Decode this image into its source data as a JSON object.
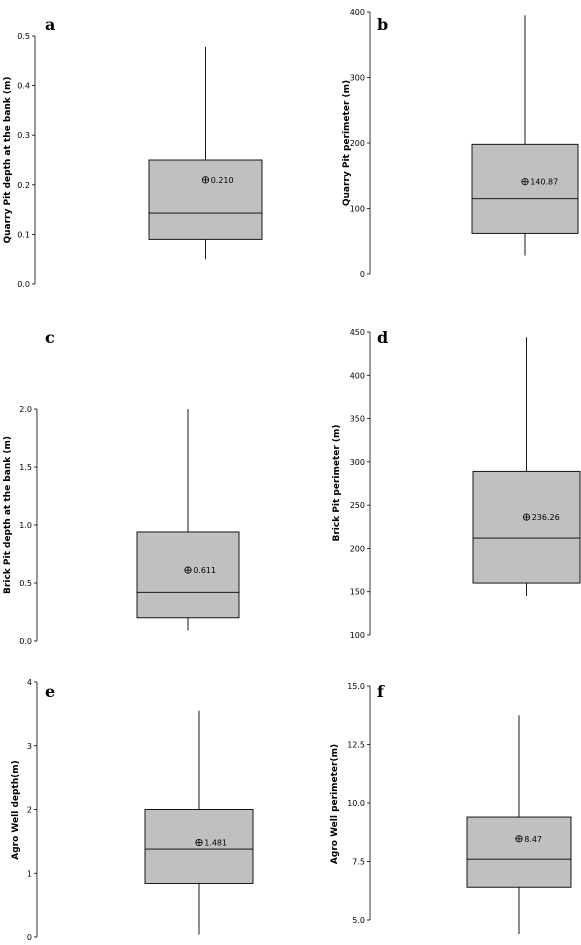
{
  "chart_data": [
    {
      "type": "box",
      "panel": "a",
      "ylabel": "Quarry Pit depth at the bank (m)",
      "ylim": [
        0,
        0.5
      ],
      "yticks": [
        "0.0",
        "0.1",
        "0.2",
        "0.3",
        "0.4",
        "0.5"
      ],
      "yticks_values": [
        0,
        0.1,
        0.2,
        0.3,
        0.4,
        0.5
      ],
      "whisker_low": 0.05,
      "q1": 0.09,
      "median": 0.143,
      "q3": 0.25,
      "whisker_high": 0.478,
      "mean": 0.21,
      "mean_label": "0.210"
    },
    {
      "type": "box",
      "panel": "b",
      "ylabel": "Quarry Pit perimeter (m)",
      "ylim": [
        0,
        400
      ],
      "yticks": [
        "0",
        "100",
        "200",
        "300",
        "400"
      ],
      "yticks_values": [
        0,
        100,
        200,
        300,
        400
      ],
      "whisker_low": 28,
      "q1": 62,
      "median": 115,
      "q3": 198,
      "whisker_high": 395,
      "mean": 140.87,
      "mean_label": "140.87"
    },
    {
      "type": "box",
      "panel": "c",
      "ylabel": "Brick Pit depth at the bank (m)",
      "ylim": [
        0,
        2.0
      ],
      "yticks": [
        "0.0",
        "0.5",
        "1.0",
        "1.5",
        "2.0"
      ],
      "yticks_values": [
        0,
        0.5,
        1.0,
        1.5,
        2.0
      ],
      "whisker_low": 0.09,
      "q1": 0.2,
      "median": 0.42,
      "q3": 0.94,
      "whisker_high": 2.0,
      "mean": 0.611,
      "mean_label": "0.611"
    },
    {
      "type": "box",
      "panel": "d",
      "ylabel": "Brick Pit perimeter (m)",
      "ylim": [
        100,
        450
      ],
      "yticks": [
        "100",
        "150",
        "200",
        "250",
        "300",
        "350",
        "400",
        "450"
      ],
      "yticks_values": [
        100,
        150,
        200,
        250,
        300,
        350,
        400,
        450
      ],
      "whisker_low": 145,
      "q1": 160,
      "median": 212,
      "q3": 289,
      "whisker_high": 444,
      "mean": 236.26,
      "mean_label": "236.26"
    },
    {
      "type": "box",
      "panel": "e",
      "ylabel": "Agro Well depth(m)",
      "ylim": [
        0,
        4
      ],
      "yticks": [
        "0",
        "1",
        "2",
        "3",
        "4"
      ],
      "yticks_values": [
        0,
        1,
        2,
        3,
        4
      ],
      "whisker_low": 0.04,
      "q1": 0.84,
      "median": 1.38,
      "q3": 2.0,
      "whisker_high": 3.55,
      "mean": 1.481,
      "mean_label": "1.481"
    },
    {
      "type": "box",
      "panel": "f",
      "ylabel": "Agro Well perimeter(m)",
      "ylim": [
        5.0,
        15.0
      ],
      "yticks": [
        "5.0",
        "7.5",
        "10.0",
        "12.5",
        "15.0"
      ],
      "yticks_values": [
        5.0,
        7.5,
        10.0,
        12.5,
        15.0
      ],
      "whisker_low": 4.4,
      "q1": 6.4,
      "median": 7.6,
      "q3": 9.4,
      "whisker_high": 13.75,
      "mean": 8.47,
      "mean_label": "8.47"
    }
  ]
}
